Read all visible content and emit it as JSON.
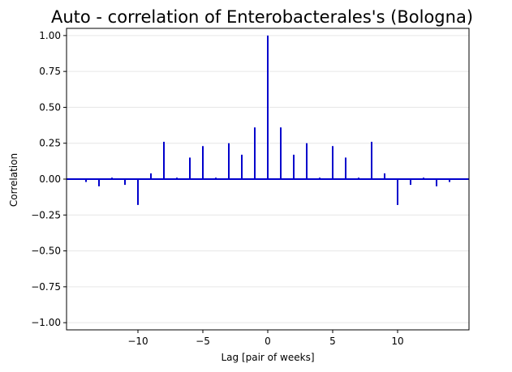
{
  "chart_data": {
    "type": "bar",
    "title": "Auto - correlation of Enterobacterales's (Bologna)",
    "xlabel": "Lag [pair of weeks]",
    "ylabel": "Correlation",
    "xlim": [
      -15.5,
      15.5
    ],
    "ylim": [
      -1.05,
      1.05
    ],
    "xticks": [
      -10,
      -5,
      0,
      5,
      10
    ],
    "xtick_labels": [
      "−10",
      "−5",
      "0",
      "5",
      "10"
    ],
    "yticks": [
      1.0,
      0.75,
      0.5,
      0.25,
      0.0,
      -0.25,
      -0.5,
      -0.75,
      -1.0
    ],
    "ytick_labels": [
      "1.00",
      "0.75",
      "0.50",
      "0.25",
      "0.00",
      "−0.25",
      "−0.50",
      "−0.75",
      "−1.00"
    ],
    "grid": "horizontal",
    "lags": [
      -14,
      -13,
      -12,
      -11,
      -10,
      -9,
      -8,
      -7,
      -6,
      -5,
      -4,
      -3,
      -2,
      -1,
      0,
      1,
      2,
      3,
      4,
      5,
      6,
      7,
      8,
      9,
      10,
      11,
      12,
      13,
      14
    ],
    "values": [
      -0.02,
      -0.05,
      0.01,
      -0.04,
      -0.18,
      0.04,
      0.26,
      0.01,
      0.15,
      0.23,
      0.01,
      0.25,
      0.17,
      0.36,
      1.0,
      0.36,
      0.17,
      0.25,
      0.01,
      0.23,
      0.15,
      0.01,
      0.26,
      0.04,
      -0.18,
      -0.04,
      0.01,
      -0.05,
      -0.02
    ],
    "colors": {
      "stem": "#0000cc",
      "baseline": "#0000cc",
      "grid": "#e6e6e6",
      "frame": "#000000"
    }
  }
}
